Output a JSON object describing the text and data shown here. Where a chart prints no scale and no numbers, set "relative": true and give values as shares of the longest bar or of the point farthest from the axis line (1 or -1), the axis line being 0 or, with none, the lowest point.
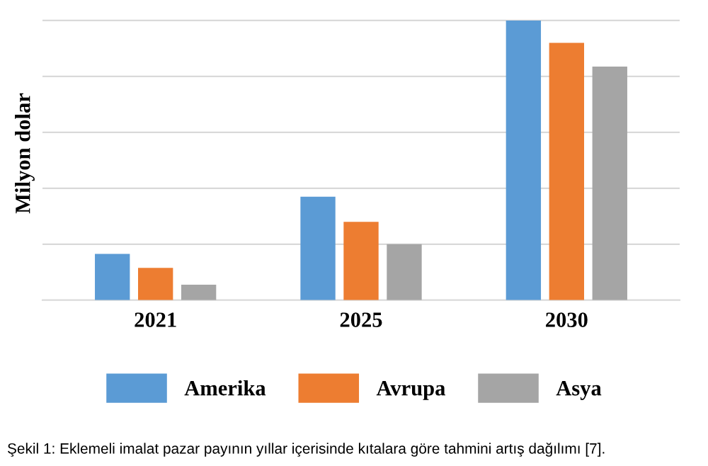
{
  "chart_data": {
    "type": "bar",
    "relative": true,
    "ylabel": "Milyon dolar",
    "categories": [
      "2021",
      "2025",
      "2030"
    ],
    "series": [
      {
        "name": "Amerika",
        "color": "#5b9bd5",
        "values": [
          0.165,
          0.37,
          1
        ]
      },
      {
        "name": "Avrupa",
        "color": "#ed7d31",
        "values": [
          0.115,
          0.28,
          0.92
        ]
      },
      {
        "name": "Asya",
        "color": "#a5a5a5",
        "values": [
          0.055,
          0.2,
          0.835
        ]
      }
    ],
    "grid": "y",
    "legend": "bottom",
    "annotations": [
      "Şekil 1: Eklemeli imalat pazar payının yıllar içerisinde kıtalara göre tahmini artış dağılımı [7]."
    ]
  }
}
